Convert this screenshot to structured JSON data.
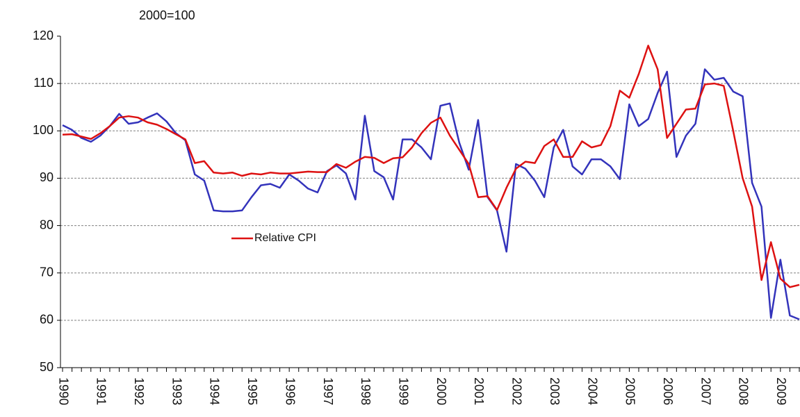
{
  "chart_data": {
    "type": "line",
    "subtitle": "2000=100",
    "categories": [
      "1990",
      null,
      null,
      null,
      "1991",
      null,
      null,
      null,
      "1992",
      null,
      null,
      null,
      "1993",
      null,
      null,
      null,
      "1994",
      null,
      null,
      null,
      "1995",
      null,
      null,
      null,
      "1996",
      null,
      null,
      null,
      "1997",
      null,
      null,
      null,
      "1998",
      null,
      null,
      null,
      "1999",
      null,
      null,
      null,
      "2000",
      null,
      null,
      null,
      "2001",
      null,
      null,
      null,
      "2002",
      null,
      null,
      null,
      "2003",
      null,
      null,
      null,
      "2004",
      null,
      null,
      null,
      "2005",
      null,
      null,
      null,
      "2006",
      null,
      null,
      null,
      "2007",
      null,
      null,
      null,
      "2008",
      null,
      null,
      null,
      "2009",
      null,
      null
    ],
    "series": [
      {
        "name": "Relative CPI",
        "color": "#dd1111",
        "values": [
          99.2,
          99.3,
          98.8,
          98.3,
          99.5,
          101,
          102.8,
          103.1,
          102.8,
          101.8,
          101.3,
          100.4,
          99.3,
          98.2,
          93.2,
          93.6,
          91.2,
          91,
          91.2,
          90.5,
          91,
          90.8,
          91.2,
          91,
          91,
          91.2,
          91.4,
          91.3,
          91.3,
          93,
          92.2,
          93.5,
          94.5,
          94.3,
          93.2,
          94.2,
          94.4,
          96.5,
          99.5,
          101.7,
          102.8,
          99,
          96,
          93,
          86,
          86.2,
          83.3,
          88,
          92,
          93.5,
          93.2,
          96.8,
          98.2,
          94.5,
          94.5,
          97.8,
          96.5,
          97,
          101,
          108.5,
          107,
          112,
          118,
          113,
          98.5,
          101.5,
          104.5,
          104.7,
          109.8,
          110,
          109.5,
          100,
          90,
          84,
          68.5,
          76.5,
          68.8,
          67,
          67.5
        ]
      },
      {
        "color": "#3333bb",
        "values": [
          101.2,
          100.2,
          98.5,
          97.7,
          99,
          101,
          103.6,
          101.5,
          101.8,
          102.8,
          103.7,
          102,
          99.5,
          98,
          90.8,
          89.5,
          83.2,
          83,
          83,
          83.2,
          86,
          88.5,
          88.8,
          88,
          90.8,
          89.5,
          87.8,
          87,
          91.5,
          92.7,
          91,
          85.5,
          103.2,
          91.5,
          90.2,
          85.5,
          98.2,
          98.2,
          96.5,
          94,
          105.3,
          105.8,
          97.5,
          91.8,
          102.3,
          86,
          83.2,
          74.5,
          93,
          92,
          89.5,
          86,
          96.5,
          100.2,
          92.5,
          90.8,
          94,
          94,
          92.5,
          89.8,
          105.6,
          101,
          102.5,
          108,
          112.5,
          94.5,
          99,
          101.5,
          113,
          110.8,
          111.2,
          108.3,
          107.3,
          89,
          84,
          60.5,
          72.8,
          61,
          60.2
        ]
      }
    ],
    "ylim": [
      50,
      120
    ],
    "yticks": [
      50,
      60,
      70,
      80,
      90,
      100,
      110,
      120
    ],
    "grid": true
  }
}
